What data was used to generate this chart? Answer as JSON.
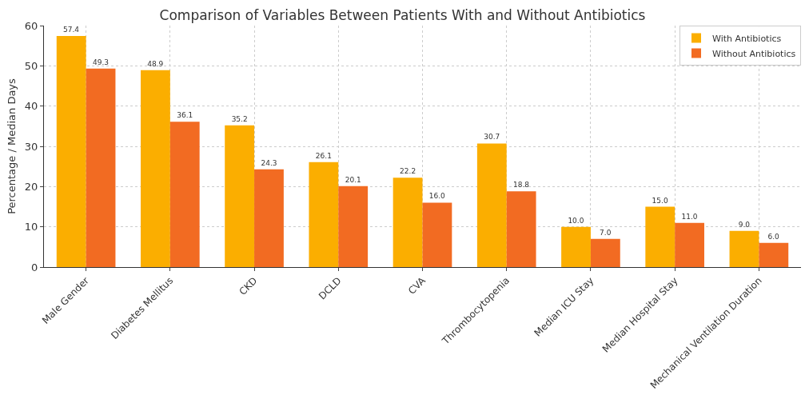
{
  "chart_data": {
    "type": "bar",
    "title": "Comparison of Variables Between Patients With and Without Antibiotics",
    "ylabel": "Percentage / Median Days",
    "categories": [
      "Male Gender",
      "Diabetes Mellitus",
      "CKD",
      "DCLD",
      "CVA",
      "Thrombocytopenia",
      "Median ICU Stay",
      "Median Hospital Stay",
      "Mechanical Ventilation Duration"
    ],
    "series": [
      {
        "name": "With Antibiotics",
        "color": "#fbae00",
        "values": [
          57.4,
          48.9,
          35.2,
          26.1,
          22.2,
          30.7,
          10,
          15,
          9
        ],
        "value_labels": [
          "57.4",
          "48.9",
          "35.2",
          "26.1",
          "22.2",
          "30.7",
          "10.0",
          "15.0",
          "9.0"
        ]
      },
      {
        "name": "Without Antibiotics",
        "color": "#f26b22",
        "values": [
          49.3,
          36.1,
          24.3,
          20.1,
          16,
          18.8,
          7,
          11,
          6
        ],
        "value_labels": [
          "49.3",
          "36.1",
          "24.3",
          "20.1",
          "16.0",
          "18.8",
          "7.0",
          "11.0",
          "6.0"
        ]
      }
    ],
    "ylim": [
      0,
      60
    ],
    "yticks": [
      0,
      10,
      20,
      30,
      40,
      50,
      60
    ],
    "grid": true,
    "legend": "top right"
  }
}
